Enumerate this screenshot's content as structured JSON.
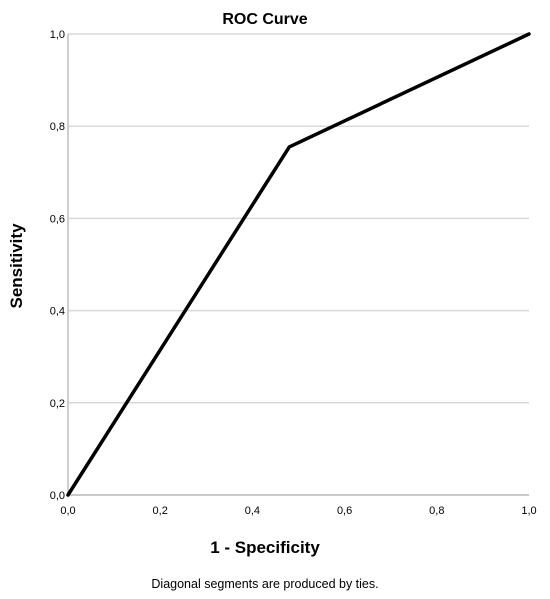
{
  "chart_data": {
    "type": "line",
    "title": "ROC Curve",
    "xlabel": "1 - Specificity",
    "ylabel": "Sensitivity",
    "xlim": [
      0.0,
      1.0
    ],
    "ylim": [
      0.0,
      1.0
    ],
    "x_ticks": [
      0.0,
      0.2,
      0.4,
      0.6,
      0.8,
      1.0
    ],
    "y_ticks": [
      0.0,
      0.2,
      0.4,
      0.6,
      0.8,
      1.0
    ],
    "x_tick_labels": [
      "0,0",
      "0,2",
      "0,4",
      "0,6",
      "0,8",
      "1,0"
    ],
    "y_tick_labels": [
      "0,0",
      "0,2",
      "0,4",
      "0,6",
      "0,8",
      "1,0"
    ],
    "grid": "horizontal",
    "legend": "none",
    "series": [
      {
        "x": [
          0.0,
          0.48,
          1.0
        ],
        "y": [
          0.0,
          0.755,
          1.0
        ],
        "color": "#000000"
      }
    ],
    "footnote": "Diagonal segments are produced by ties."
  }
}
